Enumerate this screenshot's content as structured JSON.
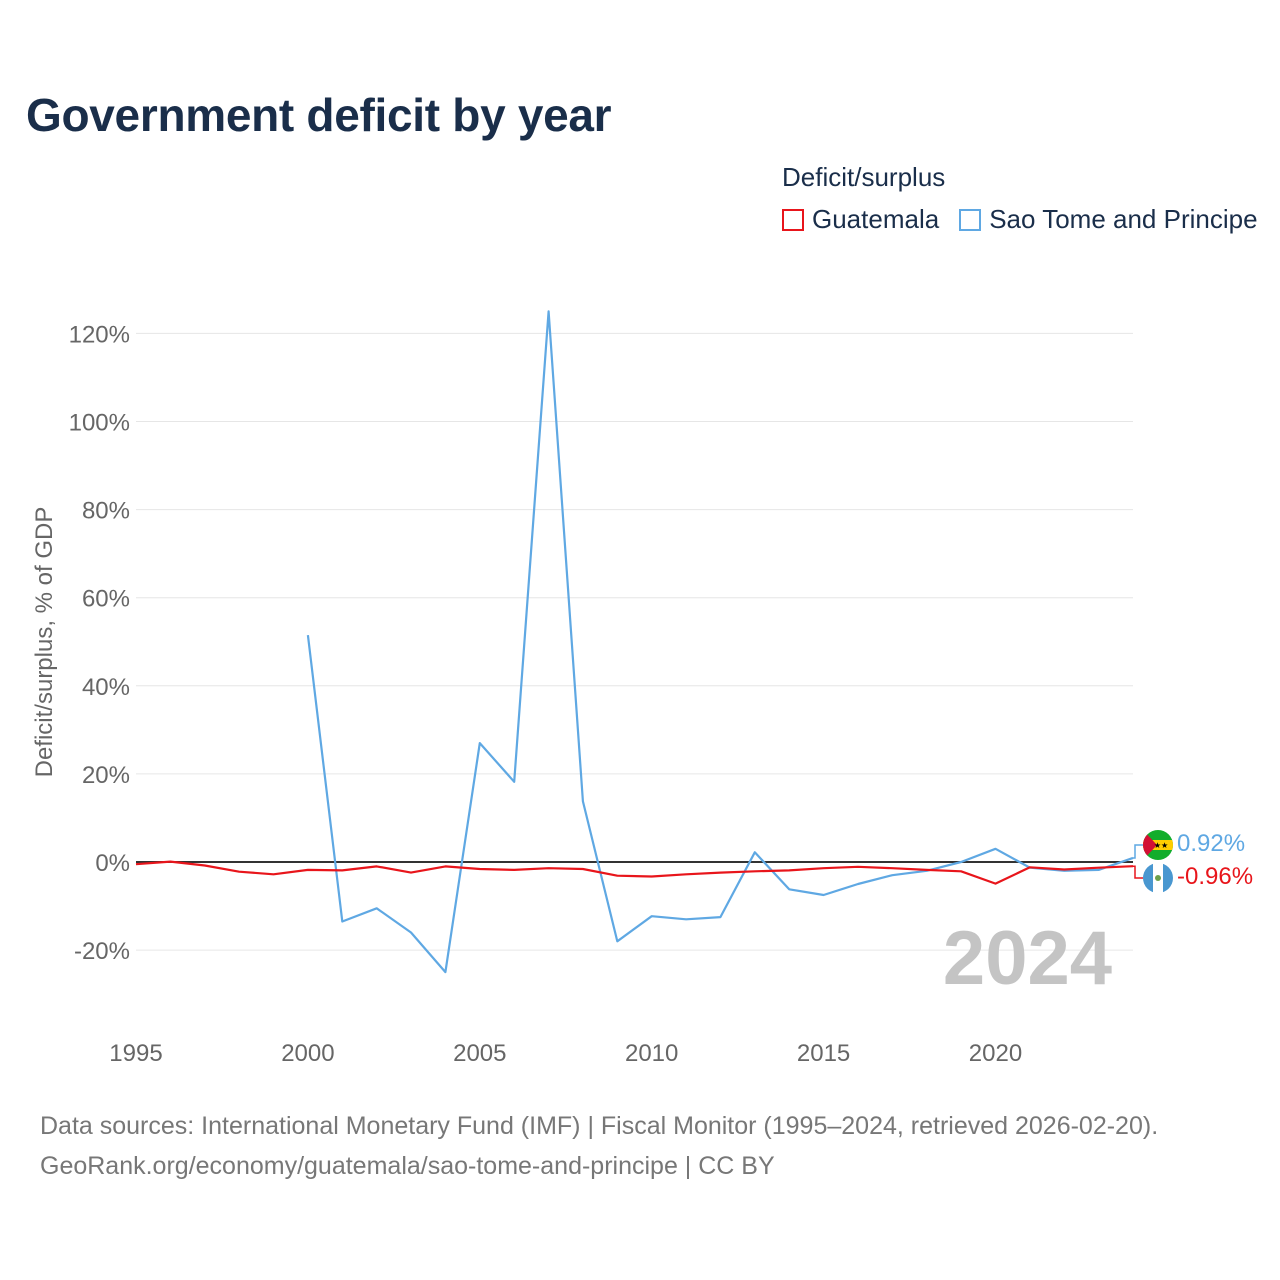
{
  "title": "Government deficit by year",
  "legend": {
    "title": "Deficit/surplus",
    "items": [
      {
        "label": "Guatemala",
        "color": "#e8151b"
      },
      {
        "label": "Sao Tome and Principe",
        "color": "#5fa8e3"
      }
    ]
  },
  "year_label": "2024",
  "footer": {
    "line1": "Data sources: International Monetary Fund (IMF) | Fiscal Monitor (1995–2024, retrieved 2026-02-20).",
    "line2": "GeoRank.org/economy/guatemala/sao-tome-and-principe | CC BY"
  },
  "chart_data": {
    "type": "line",
    "title": "Government deficit by year",
    "xlabel": "",
    "ylabel": "Deficit/surplus, % of GDP",
    "xlim": [
      1995,
      2024
    ],
    "ylim": [
      -30,
      125
    ],
    "x_ticks": [
      1995,
      2000,
      2005,
      2010,
      2015,
      2020
    ],
    "y_ticks": [
      -20,
      0,
      20,
      40,
      60,
      80,
      100,
      120
    ],
    "y_tick_labels": [
      "-20%",
      "0%",
      "20%",
      "40%",
      "60%",
      "80%",
      "100%",
      "120%"
    ],
    "x": [
      1995,
      1996,
      1997,
      1998,
      1999,
      2000,
      2001,
      2002,
      2003,
      2004,
      2005,
      2006,
      2007,
      2008,
      2009,
      2010,
      2011,
      2012,
      2013,
      2014,
      2015,
      2016,
      2017,
      2018,
      2019,
      2020,
      2021,
      2022,
      2023,
      2024
    ],
    "series": [
      {
        "name": "Guatemala",
        "color": "#e8151b",
        "values": [
          -0.5,
          0.1,
          -0.8,
          -2.2,
          -2.8,
          -1.8,
          -1.9,
          -1.0,
          -2.4,
          -1.0,
          -1.6,
          -1.8,
          -1.4,
          -1.6,
          -3.1,
          -3.3,
          -2.8,
          -2.4,
          -2.1,
          -1.9,
          -1.4,
          -1.1,
          -1.4,
          -1.8,
          -2.1,
          -4.9,
          -1.2,
          -1.7,
          -1.3,
          -0.96
        ],
        "end_label": "-0.96%"
      },
      {
        "name": "Sao Tome and Principe",
        "color": "#5fa8e3",
        "values": [
          null,
          null,
          null,
          null,
          null,
          51.5,
          -13.5,
          -10.5,
          -16.0,
          -25.0,
          27.0,
          18.2,
          125.0,
          13.8,
          -18.0,
          -12.3,
          -13.0,
          -12.5,
          2.2,
          -6.2,
          -7.5,
          -5.0,
          -3.0,
          -2.0,
          0.0,
          3.0,
          -1.3,
          -2.0,
          -1.8,
          0.92
        ],
        "end_label": "0.92%"
      }
    ]
  }
}
